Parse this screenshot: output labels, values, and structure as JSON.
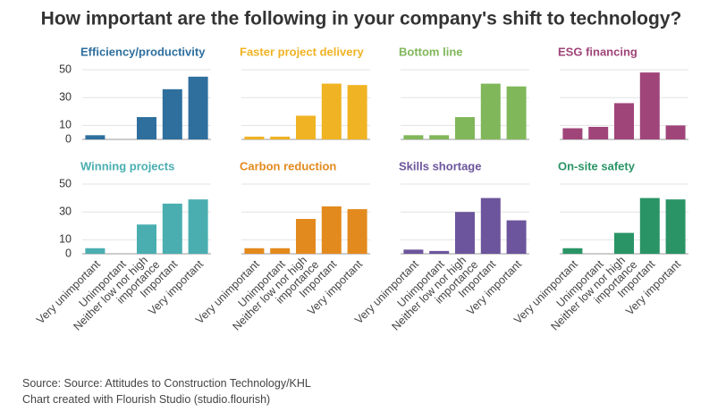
{
  "title": "How important are the following in your company's shift to technology?",
  "source": "Source: Source: Attitudes to Construction Technology/KHL",
  "credit": "Chart created with Flourish Studio (studio.flourish)",
  "chart_data": [
    {
      "type": "bar",
      "title": "Efficiency/productivity",
      "color": "#2e6f9e",
      "values": [
        3,
        0,
        16,
        36,
        45
      ],
      "ylim": [
        0,
        50
      ],
      "yticks": [
        0,
        10,
        30,
        50
      ],
      "grid": true
    },
    {
      "type": "bar",
      "title": "Faster project delivery",
      "color": "#f0b323",
      "values": [
        2,
        2,
        17,
        40,
        39
      ],
      "ylim": [
        0,
        50
      ],
      "yticks": [
        0,
        10,
        30,
        50
      ],
      "grid": true
    },
    {
      "type": "bar",
      "title": "Bottom line",
      "color": "#80b75a",
      "values": [
        3,
        3,
        16,
        40,
        38
      ],
      "ylim": [
        0,
        50
      ],
      "yticks": [
        0,
        10,
        30,
        50
      ],
      "grid": true
    },
    {
      "type": "bar",
      "title": "ESG financing",
      "color": "#a0457a",
      "values": [
        8,
        9,
        26,
        48,
        10
      ],
      "ylim": [
        0,
        50
      ],
      "yticks": [
        0,
        10,
        30,
        50
      ],
      "grid": true
    },
    {
      "type": "bar",
      "title": "Winning projects",
      "color": "#4aaeb0",
      "categories": [
        "Very unimportant",
        "Unimportant",
        "Neither low nor high importance",
        "Important",
        "Very important"
      ],
      "values": [
        4,
        0,
        21,
        36,
        39
      ],
      "ylim": [
        0,
        50
      ],
      "yticks": [
        0,
        10,
        30,
        50
      ],
      "grid": true
    },
    {
      "type": "bar",
      "title": "Carbon reduction",
      "color": "#e38a1e",
      "categories": [
        "Very unimportant",
        "Unimportant",
        "Neither low nor high importance",
        "Important",
        "Very important"
      ],
      "values": [
        4,
        4,
        25,
        34,
        32
      ],
      "ylim": [
        0,
        50
      ],
      "yticks": [
        0,
        10,
        30,
        50
      ],
      "grid": true
    },
    {
      "type": "bar",
      "title": "Skills shortage",
      "color": "#6c559c",
      "categories": [
        "Very unimportant",
        "Unimportant",
        "Neither low nor high importance",
        "Important",
        "Very important"
      ],
      "values": [
        3,
        2,
        30,
        40,
        24
      ],
      "ylim": [
        0,
        50
      ],
      "yticks": [
        0,
        10,
        30,
        50
      ],
      "grid": true
    },
    {
      "type": "bar",
      "title": "On-site safety",
      "color": "#2a9466",
      "categories": [
        "Very unimportant",
        "Unimportant",
        "Neither low nor high importance",
        "Important",
        "Very important"
      ],
      "values": [
        4,
        0,
        15,
        40,
        39
      ],
      "ylim": [
        0,
        50
      ],
      "yticks": [
        0,
        10,
        30,
        50
      ],
      "grid": true
    }
  ]
}
